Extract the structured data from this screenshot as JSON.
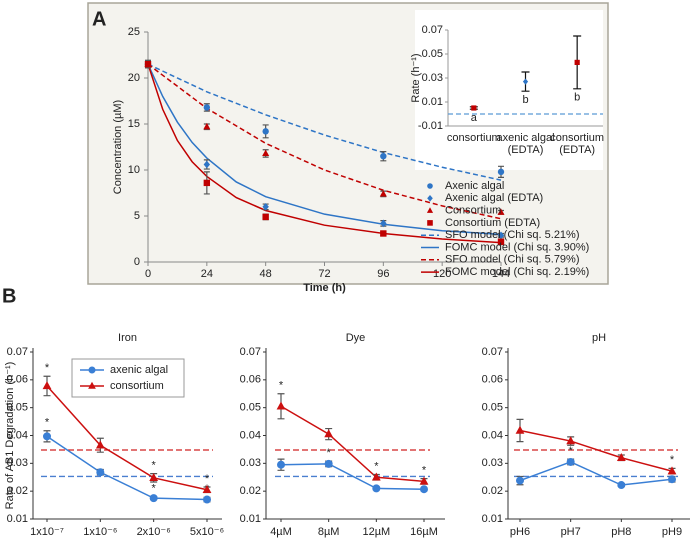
{
  "panel_labels": [
    "A",
    "B"
  ],
  "chart_data": [
    {
      "type": "scatter",
      "xlabel": "Time (h)",
      "ylabel": "Concentration (µM)",
      "xlim": [
        0,
        144
      ],
      "xticks": [
        0,
        24,
        48,
        72,
        96,
        120,
        144
      ],
      "ylim": [
        0,
        25
      ],
      "yticks": [
        0,
        5,
        10,
        15,
        20,
        25
      ],
      "series": [
        {
          "name": "Axenic algal",
          "color": "#2e75c6",
          "marker": "circle",
          "x": [
            0,
            24,
            48,
            96,
            144
          ],
          "values": [
            21.5,
            16.8,
            14.2,
            11.5,
            9.8
          ],
          "errors": [
            0.4,
            0.4,
            0.7,
            0.5,
            0.6
          ]
        },
        {
          "name": "Axenic algal (EDTA)",
          "color": "#2e75c6",
          "marker": "diamond",
          "x": [
            0,
            24,
            48,
            96,
            144
          ],
          "values": [
            21.5,
            10.6,
            6.0,
            4.2,
            2.9
          ],
          "errors": [
            0.4,
            0.5,
            0.3,
            0.3,
            0.2
          ]
        },
        {
          "name": "Consortium",
          "color": "#c00000",
          "marker": "triangle",
          "x": [
            0,
            24,
            48,
            96,
            144
          ],
          "values": [
            21.5,
            14.7,
            11.8,
            7.4,
            5.4
          ],
          "errors": [
            0.4,
            0.3,
            0.4,
            0.3,
            0.2
          ]
        },
        {
          "name": "Consortium (EDTA)",
          "color": "#c00000",
          "marker": "square",
          "x": [
            0,
            24,
            48,
            96,
            144
          ],
          "values": [
            21.5,
            8.6,
            4.9,
            3.1,
            2.2
          ],
          "errors": [
            0.4,
            1.2,
            0.3,
            0.2,
            0.3
          ]
        },
        {
          "name": "SFO model (Chi sq. 5.21%)",
          "color": "#2e75c6",
          "line": "dashed",
          "x": [
            0,
            24,
            48,
            72,
            96,
            120,
            144
          ],
          "values": [
            21.5,
            18.5,
            16.0,
            13.8,
            11.9,
            10.3,
            8.9
          ]
        },
        {
          "name": "FOMC model (Chi sq. 3.90%)",
          "color": "#2e75c6",
          "line": "solid",
          "x": [
            0,
            6,
            12,
            18,
            24,
            36,
            48,
            72,
            96,
            120,
            144
          ],
          "values": [
            21.5,
            18.0,
            15.2,
            13.0,
            11.3,
            8.7,
            7.1,
            5.2,
            4.1,
            3.4,
            3.0
          ]
        },
        {
          "name": "SFO model (Chi sq. 5.79%)",
          "color": "#c00000",
          "line": "dashed",
          "x": [
            0,
            24,
            48,
            72,
            96,
            120,
            144
          ],
          "values": [
            21.5,
            16.7,
            12.9,
            10.0,
            7.8,
            6.1,
            4.7
          ]
        },
        {
          "name": "FOMC model (Chi sq. 2.19%)",
          "color": "#c00000",
          "line": "solid",
          "x": [
            0,
            6,
            12,
            18,
            24,
            36,
            48,
            72,
            96,
            120,
            144
          ],
          "values": [
            21.5,
            16.6,
            13.2,
            10.9,
            9.3,
            7.0,
            5.6,
            4.0,
            3.1,
            2.5,
            2.1
          ]
        }
      ]
    },
    {
      "type": "dot",
      "ylabel": "Rate (h⁻¹)",
      "categories": [
        "consortium",
        "axenic algal\n(EDTA)",
        "consortium\n(EDTA)"
      ],
      "values": [
        0.005,
        0.027,
        0.043
      ],
      "errors": [
        0.001,
        0.008,
        0.022
      ],
      "colors": [
        "#c00000",
        "#2e75c6",
        "#c00000"
      ],
      "markers": [
        "square",
        "diamond",
        "square"
      ],
      "annotations": [
        "a",
        "b",
        "b"
      ],
      "ylim": [
        -0.01,
        0.07
      ],
      "yticks": [
        -0.01,
        0.01,
        0.03,
        0.05,
        0.07
      ],
      "reference_line": {
        "value": 0,
        "color": "#5b9bd5"
      }
    },
    {
      "type": "line",
      "title": "Iron",
      "ylabel": "Rate of AB1 Degradation (h⁻¹)",
      "legend": true,
      "categories": [
        "1x10⁻⁷",
        "1x10⁻⁶",
        "2x10⁻⁶",
        "5x10⁻⁶"
      ],
      "ylim": [
        0.01,
        0.07
      ],
      "yticks": [
        0.01,
        0.02,
        0.03,
        0.04,
        0.05,
        0.06,
        0.07
      ],
      "reference_lines": [
        {
          "value": 0.0253,
          "color": "#4a7fd0"
        },
        {
          "value": 0.0348,
          "color": "#d02020"
        }
      ],
      "series": [
        {
          "name": "axenic algal",
          "color": "#3a7fd5",
          "marker": "circle",
          "values": [
            0.0397,
            0.0268,
            0.0175,
            0.017
          ],
          "errors": [
            0.002,
            0.001,
            0.0005,
            0.0008
          ],
          "significance": [
            "*",
            null,
            "*",
            "*"
          ]
        },
        {
          "name": "consortium",
          "color": "#cc1010",
          "marker": "triangle",
          "values": [
            0.0578,
            0.0365,
            0.0248,
            0.0205
          ],
          "errors": [
            0.0035,
            0.0025,
            0.0015,
            0.001
          ],
          "significance": [
            "*",
            null,
            "*",
            "*"
          ]
        }
      ]
    },
    {
      "type": "line",
      "title": "Dye",
      "categories": [
        "4µM",
        "8µM",
        "12µM",
        "16µM"
      ],
      "ylim": [
        0.01,
        0.07
      ],
      "yticks": [
        0.01,
        0.02,
        0.03,
        0.04,
        0.05,
        0.06,
        0.07
      ],
      "reference_lines": [
        {
          "value": 0.0253,
          "color": "#4a7fd0"
        },
        {
          "value": 0.0348,
          "color": "#d02020"
        }
      ],
      "series": [
        {
          "color": "#3a7fd5",
          "marker": "circle",
          "values": [
            0.0295,
            0.0298,
            0.021,
            0.0207
          ],
          "errors": [
            0.002,
            0.001,
            0.0005,
            0.0005
          ],
          "significance": [
            null,
            "*",
            null,
            null
          ]
        },
        {
          "color": "#cc1010",
          "marker": "triangle",
          "values": [
            0.0505,
            0.0405,
            0.025,
            0.0235
          ],
          "errors": [
            0.0045,
            0.002,
            0.001,
            0.001
          ],
          "significance": [
            "*",
            null,
            "*",
            "*"
          ]
        }
      ]
    },
    {
      "type": "line",
      "title": "pH",
      "categories": [
        "pH6",
        "pH7",
        "pH8",
        "pH9"
      ],
      "ylim": [
        0.01,
        0.07
      ],
      "yticks": [
        0.01,
        0.02,
        0.03,
        0.04,
        0.05,
        0.06,
        0.07
      ],
      "reference_lines": [
        {
          "value": 0.0253,
          "color": "#4a7fd0"
        },
        {
          "value": 0.0348,
          "color": "#d02020"
        }
      ],
      "series": [
        {
          "color": "#3a7fd5",
          "marker": "circle",
          "values": [
            0.0238,
            0.0305,
            0.0222,
            0.0243
          ],
          "errors": [
            0.0015,
            0.001,
            0.0005,
            0.001
          ],
          "significance": [
            null,
            "*",
            null,
            null
          ]
        },
        {
          "color": "#cc1010",
          "marker": "triangle",
          "values": [
            0.0418,
            0.038,
            0.032,
            0.0272
          ],
          "errors": [
            0.004,
            0.0015,
            0.001,
            0.001
          ],
          "significance": [
            null,
            null,
            null,
            "*"
          ]
        }
      ]
    }
  ]
}
